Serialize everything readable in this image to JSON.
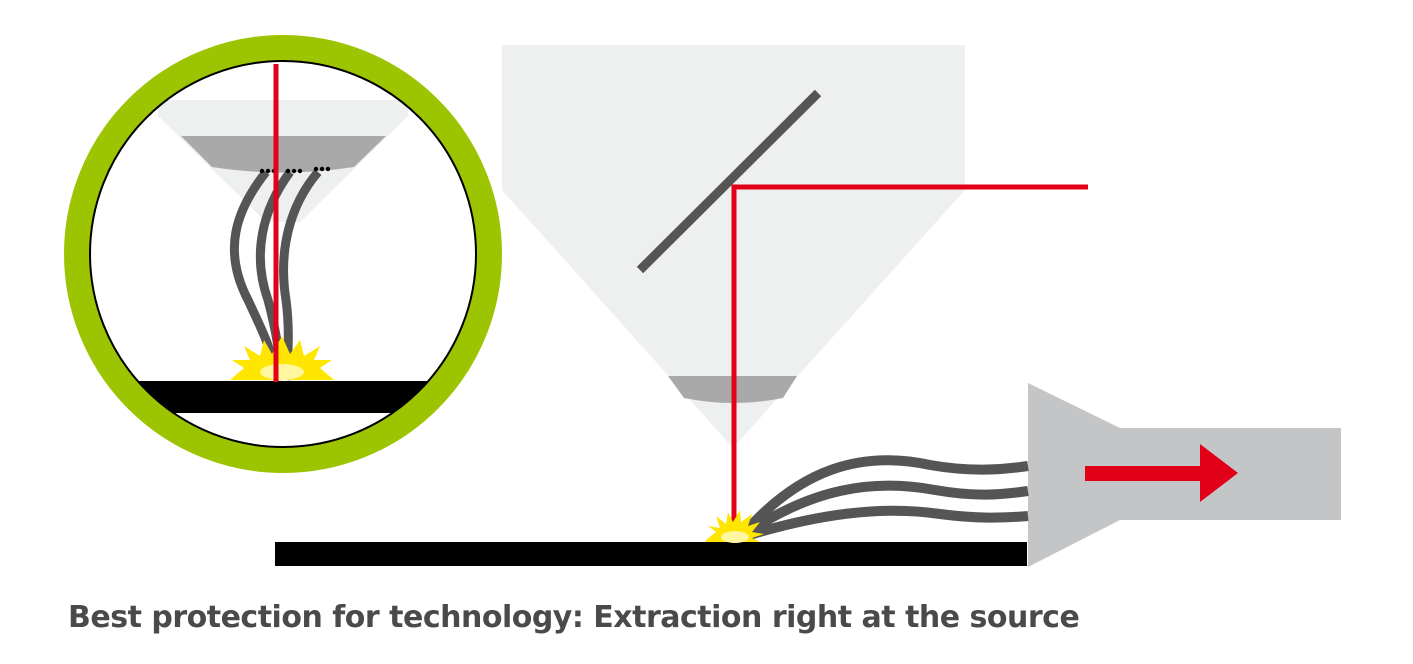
{
  "caption": "Best protection for technology: Extraction right at the source",
  "colors": {
    "ring": "#9cc400",
    "laser": "#e10018",
    "fume": "#555555",
    "workpiece": "#000000",
    "housing": "#eeefef",
    "lens": "#a9a9a9",
    "extractor": "#c4c5c6",
    "spark": "#ffe600"
  }
}
